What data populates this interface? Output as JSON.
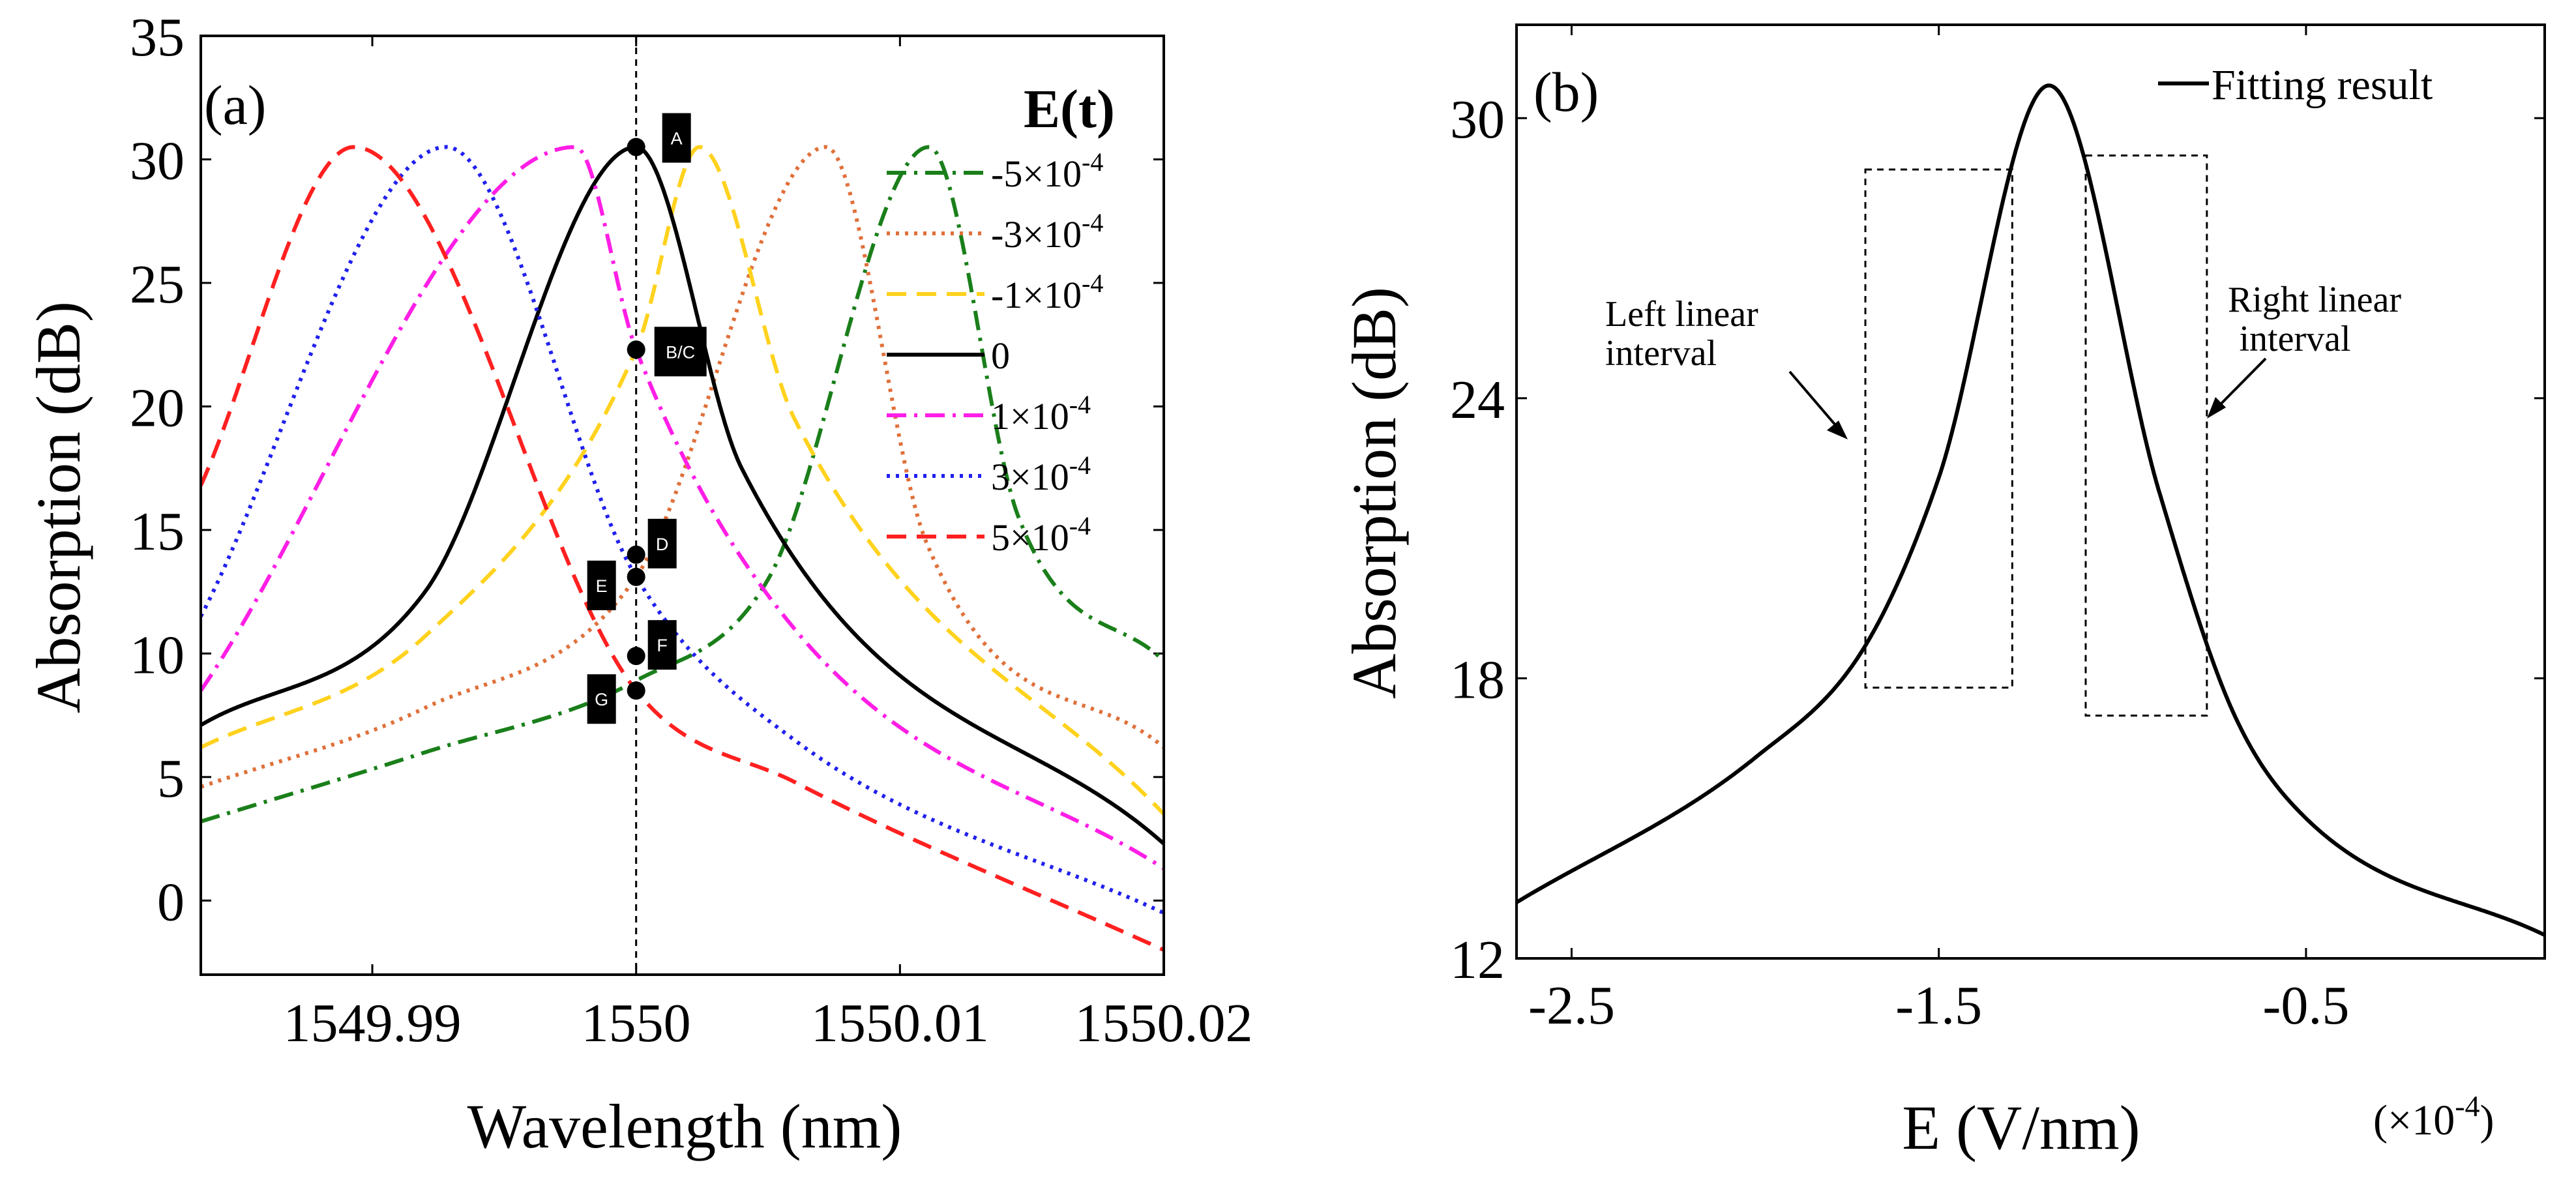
{
  "chart_data": [
    {
      "panel": "(a)",
      "type": "line",
      "xlabel": "Wavelength (nm)",
      "ylabel": "Absorption (dB)",
      "xlim": [
        1549.9835,
        1550.02
      ],
      "ylim": [
        -3,
        35
      ],
      "xticks": [
        1549.99,
        1550,
        1550.01,
        1550.02
      ],
      "xtick_labels": [
        "1549.99",
        "1550",
        "1550.01",
        "1550.02"
      ],
      "yticks": [
        0,
        5,
        10,
        15,
        20,
        25,
        30,
        35
      ],
      "ytick_labels": [
        "0",
        "5",
        "10",
        "15",
        "20",
        "25",
        "30",
        "35"
      ],
      "legend_title": "E(t)",
      "legend_position": "top-right",
      "vline_x": 1550.0,
      "series": [
        {
          "name": "-5×10^-4",
          "label_main": "-5×10",
          "label_exp": "-4",
          "color": "#1a7f1a",
          "dash": "dashdot",
          "center": 1550.0111,
          "peak": 30.5,
          "x": [
            1549.9835,
            1549.992,
            1550.0,
            1550.005,
            1550.0111,
            1550.0145,
            1550.02
          ],
          "y": [
            3.2,
            6.0,
            8.9,
            13.0,
            30.5,
            15.5,
            9.7
          ]
        },
        {
          "name": "-3×10^-4",
          "label_main": "-3×10",
          "label_exp": "-4",
          "color": "#e0703a",
          "dash": "dot",
          "center": 1550.0072,
          "peak": 30.5,
          "x": [
            1549.9835,
            1549.992,
            1550.0,
            1550.0072,
            1550.011,
            1550.02
          ],
          "y": [
            4.6,
            7.8,
            13.1,
            30.5,
            14.5,
            6.2
          ]
        },
        {
          "name": "-1×10^-4",
          "label_main": "-1×10",
          "label_exp": "-4",
          "color": "#ffd21e",
          "dash": "dash",
          "center": 1550.0024,
          "peak": 30.5,
          "x": [
            1549.9835,
            1549.992,
            1550.0,
            1550.0024,
            1550.006,
            1550.02
          ],
          "y": [
            6.2,
            10.7,
            22.3,
            30.5,
            19.5,
            3.5
          ]
        },
        {
          "name": "0",
          "label_main": "0",
          "label_exp": "",
          "color": "#000000",
          "dash": "solid",
          "center": 1550.0,
          "peak": 30.5,
          "x": [
            1549.9835,
            1549.992,
            1550.0,
            1550.004,
            1550.02
          ],
          "y": [
            7.1,
            12.5,
            30.5,
            17.5,
            2.3
          ]
        },
        {
          "name": "1×10^-4",
          "label_main": "1×10",
          "label_exp": "-4",
          "color": "#ff1ee6",
          "dash": "dashdot",
          "center": 1549.9977,
          "peak": 30.5,
          "x": [
            1549.9835,
            1549.9977,
            1550.0,
            1550.006,
            1550.02
          ],
          "y": [
            8.5,
            30.5,
            22.3,
            11.0,
            1.3
          ]
        },
        {
          "name": "3×10^-4",
          "label_main": "3×10",
          "label_exp": "-4",
          "color": "#2020ee",
          "dash": "dot",
          "center": 1549.9928,
          "peak": 30.5,
          "x": [
            1549.9835,
            1549.9928,
            1550.0,
            1550.006,
            1550.02
          ],
          "y": [
            11.5,
            30.5,
            13.1,
            6.5,
            -0.5
          ]
        },
        {
          "name": "5×10^-4",
          "label_main": "5×10",
          "label_exp": "-4",
          "color": "#ff2020",
          "dash": "dash",
          "center": 1549.9893,
          "peak": 30.5,
          "x": [
            1549.9835,
            1549.9893,
            1550.0,
            1550.006,
            1550.02
          ],
          "y": [
            16.8,
            30.5,
            8.5,
            4.8,
            -2.0
          ]
        }
      ],
      "points": [
        {
          "label": "A",
          "x": 1550.0,
          "y": 30.5
        },
        {
          "label": "B/C",
          "x": 1550.0,
          "y": 22.3
        },
        {
          "label": "D",
          "x": 1550.0,
          "y": 14.0
        },
        {
          "label": "E",
          "x": 1550.0,
          "y": 13.1
        },
        {
          "label": "F",
          "x": 1550.0,
          "y": 9.9
        },
        {
          "label": "G",
          "x": 1550.0,
          "y": 8.5
        }
      ]
    },
    {
      "panel": "(b)",
      "type": "line",
      "xlabel": "E (V/nm)",
      "x_multiplier_main": "(×10",
      "x_multiplier_exp": "-4",
      "x_multiplier_close": ")",
      "ylabel": "Absorption (dB)",
      "xlim": [
        -2.65,
        0.15
      ],
      "ylim": [
        12,
        32
      ],
      "xticks": [
        -2.5,
        -1.5,
        -0.5
      ],
      "xtick_labels": [
        "-2.5",
        "-1.5",
        "-0.5"
      ],
      "yticks": [
        12,
        18,
        24,
        30
      ],
      "ytick_labels": [
        "12",
        "18",
        "24",
        "30"
      ],
      "legend_position": "top-right",
      "series": [
        {
          "name": "Fitting result",
          "color": "#000000",
          "center": -1.2,
          "peak": 30.7,
          "x": [
            -2.65,
            -2.0,
            -1.7,
            -1.5,
            -1.2,
            -0.9,
            -0.7,
            -0.5,
            0.15
          ],
          "y": [
            13.2,
            16.3,
            18.7,
            22.3,
            30.7,
            22.0,
            17.3,
            15.0,
            12.5
          ]
        }
      ],
      "annotations": [
        {
          "line1": "Left linear",
          "line2": "interval",
          "box_x": [
            -1.7,
            -1.3
          ],
          "box_y": [
            17.8,
            28.9
          ]
        },
        {
          "line1": "Right linear",
          "line2": "interval",
          "box_x": [
            -1.1,
            -0.77
          ],
          "box_y": [
            17.2,
            29.2
          ]
        }
      ]
    }
  ]
}
